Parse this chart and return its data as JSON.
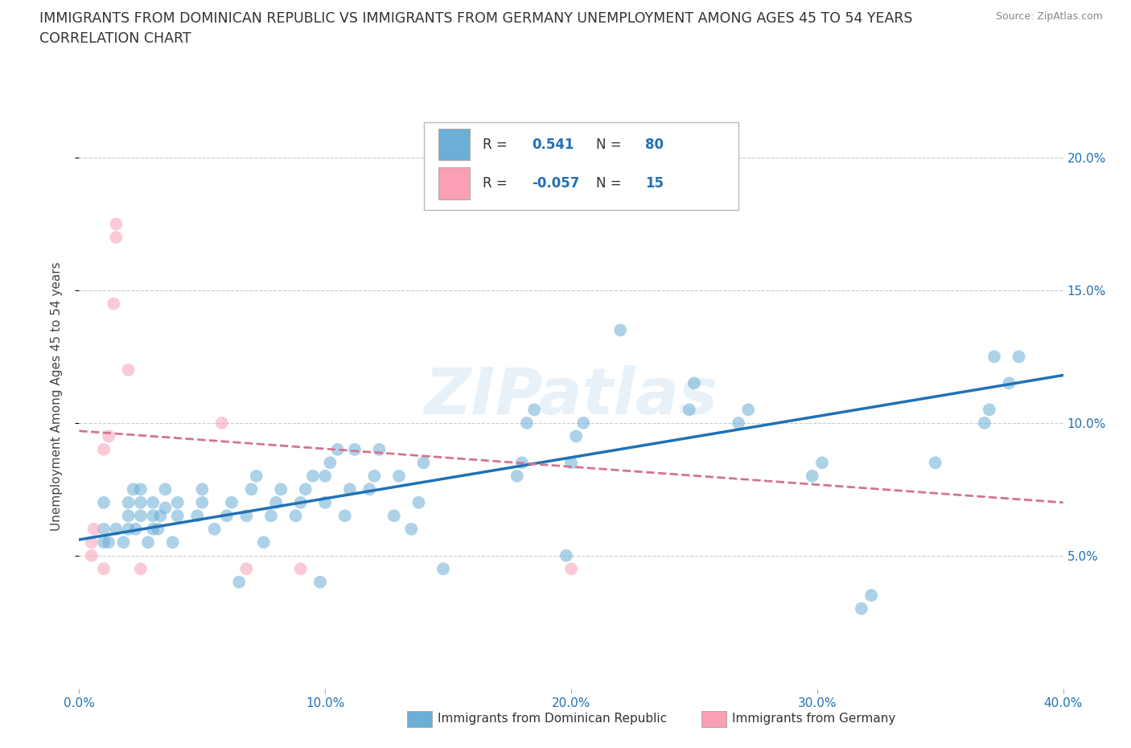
{
  "title_line1": "IMMIGRANTS FROM DOMINICAN REPUBLIC VS IMMIGRANTS FROM GERMANY UNEMPLOYMENT AMONG AGES 45 TO 54 YEARS",
  "title_line2": "CORRELATION CHART",
  "source": "Source: ZipAtlas.com",
  "ylabel": "Unemployment Among Ages 45 to 54 years",
  "xlim": [
    0.0,
    0.4
  ],
  "ylim": [
    0.0,
    0.22
  ],
  "xticks": [
    0.0,
    0.1,
    0.2,
    0.3,
    0.4
  ],
  "xtick_labels": [
    "0.0%",
    "10.0%",
    "20.0%",
    "30.0%",
    "40.0%"
  ],
  "yticks_right": [
    0.05,
    0.1,
    0.15,
    0.2
  ],
  "ytick_labels_right": [
    "5.0%",
    "10.0%",
    "15.0%",
    "20.0%"
  ],
  "blue_color": "#6baed6",
  "pink_color": "#fa9fb5",
  "blue_line_color": "#2171b5",
  "pink_line_color": "#d4748e",
  "watermark": "ZIPatlas",
  "legend_box_color": "#cccccc",
  "blue_scatter": [
    [
      0.01,
      0.055
    ],
    [
      0.01,
      0.06
    ],
    [
      0.01,
      0.07
    ],
    [
      0.012,
      0.055
    ],
    [
      0.015,
      0.06
    ],
    [
      0.018,
      0.055
    ],
    [
      0.02,
      0.06
    ],
    [
      0.02,
      0.065
    ],
    [
      0.02,
      0.07
    ],
    [
      0.022,
      0.075
    ],
    [
      0.023,
      0.06
    ],
    [
      0.025,
      0.065
    ],
    [
      0.025,
      0.07
    ],
    [
      0.025,
      0.075
    ],
    [
      0.028,
      0.055
    ],
    [
      0.03,
      0.06
    ],
    [
      0.03,
      0.065
    ],
    [
      0.03,
      0.07
    ],
    [
      0.032,
      0.06
    ],
    [
      0.033,
      0.065
    ],
    [
      0.035,
      0.068
    ],
    [
      0.035,
      0.075
    ],
    [
      0.038,
      0.055
    ],
    [
      0.04,
      0.065
    ],
    [
      0.04,
      0.07
    ],
    [
      0.048,
      0.065
    ],
    [
      0.05,
      0.07
    ],
    [
      0.05,
      0.075
    ],
    [
      0.055,
      0.06
    ],
    [
      0.06,
      0.065
    ],
    [
      0.062,
      0.07
    ],
    [
      0.065,
      0.04
    ],
    [
      0.068,
      0.065
    ],
    [
      0.07,
      0.075
    ],
    [
      0.072,
      0.08
    ],
    [
      0.075,
      0.055
    ],
    [
      0.078,
      0.065
    ],
    [
      0.08,
      0.07
    ],
    [
      0.082,
      0.075
    ],
    [
      0.088,
      0.065
    ],
    [
      0.09,
      0.07
    ],
    [
      0.092,
      0.075
    ],
    [
      0.095,
      0.08
    ],
    [
      0.098,
      0.04
    ],
    [
      0.1,
      0.07
    ],
    [
      0.1,
      0.08
    ],
    [
      0.102,
      0.085
    ],
    [
      0.105,
      0.09
    ],
    [
      0.108,
      0.065
    ],
    [
      0.11,
      0.075
    ],
    [
      0.112,
      0.09
    ],
    [
      0.118,
      0.075
    ],
    [
      0.12,
      0.08
    ],
    [
      0.122,
      0.09
    ],
    [
      0.128,
      0.065
    ],
    [
      0.13,
      0.08
    ],
    [
      0.135,
      0.06
    ],
    [
      0.138,
      0.07
    ],
    [
      0.14,
      0.085
    ],
    [
      0.148,
      0.045
    ],
    [
      0.178,
      0.08
    ],
    [
      0.18,
      0.085
    ],
    [
      0.182,
      0.1
    ],
    [
      0.185,
      0.105
    ],
    [
      0.198,
      0.05
    ],
    [
      0.2,
      0.085
    ],
    [
      0.202,
      0.095
    ],
    [
      0.205,
      0.1
    ],
    [
      0.22,
      0.135
    ],
    [
      0.248,
      0.105
    ],
    [
      0.25,
      0.115
    ],
    [
      0.268,
      0.1
    ],
    [
      0.272,
      0.105
    ],
    [
      0.298,
      0.08
    ],
    [
      0.302,
      0.085
    ],
    [
      0.318,
      0.03
    ],
    [
      0.322,
      0.035
    ],
    [
      0.348,
      0.085
    ],
    [
      0.368,
      0.1
    ],
    [
      0.37,
      0.105
    ],
    [
      0.372,
      0.125
    ],
    [
      0.378,
      0.115
    ],
    [
      0.382,
      0.125
    ]
  ],
  "pink_scatter": [
    [
      0.005,
      0.05
    ],
    [
      0.005,
      0.055
    ],
    [
      0.006,
      0.06
    ],
    [
      0.01,
      0.045
    ],
    [
      0.01,
      0.09
    ],
    [
      0.012,
      0.095
    ],
    [
      0.014,
      0.145
    ],
    [
      0.015,
      0.17
    ],
    [
      0.015,
      0.175
    ],
    [
      0.02,
      0.12
    ],
    [
      0.025,
      0.045
    ],
    [
      0.058,
      0.1
    ],
    [
      0.068,
      0.045
    ],
    [
      0.09,
      0.045
    ],
    [
      0.2,
      0.045
    ]
  ],
  "blue_trendline": [
    [
      0.0,
      0.056
    ],
    [
      0.4,
      0.118
    ]
  ],
  "pink_trendline": [
    [
      0.0,
      0.097
    ],
    [
      0.4,
      0.07
    ]
  ]
}
